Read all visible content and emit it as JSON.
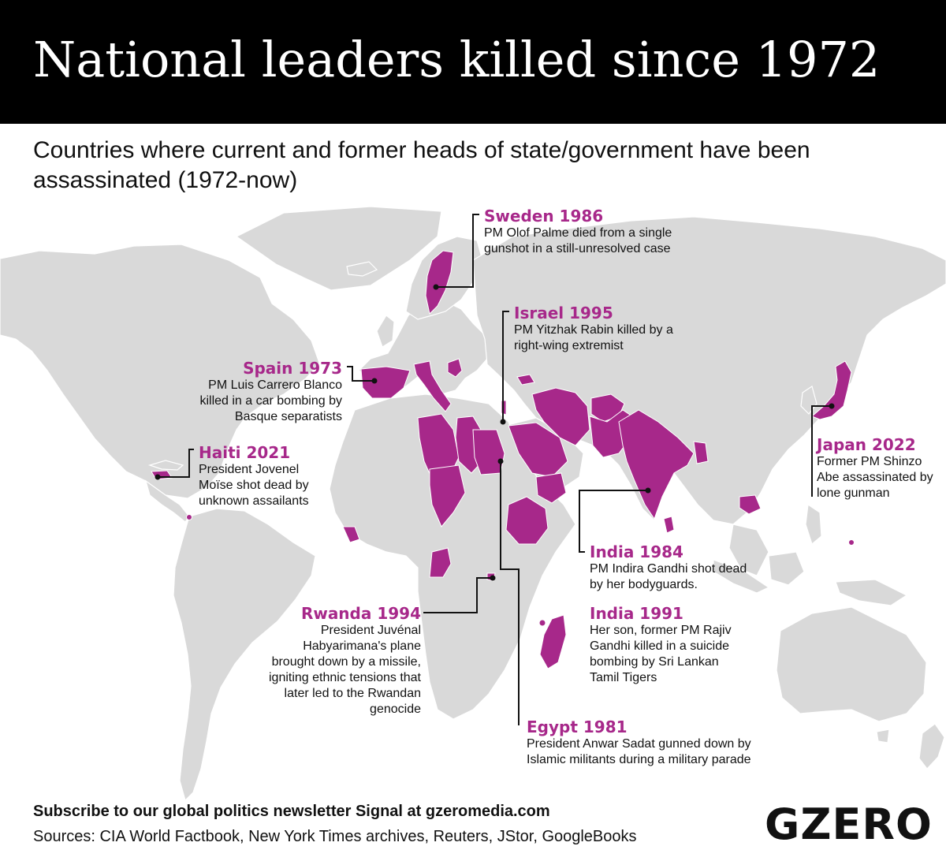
{
  "title": "National leaders killed since 1972",
  "subtitle": "Countries where current and former heads of state/government have been assassinated (1972-now)",
  "colors": {
    "highlight": "#a7288a",
    "land": "#d9d9d9",
    "background": "#ffffff",
    "header": "#000000"
  },
  "annotations": {
    "sweden": {
      "head": "Sweden 1986",
      "body": "PM Olof Palme died from a single gunshot in a still-unresolved case"
    },
    "israel": {
      "head": "Israel 1995",
      "body": "PM Yitzhak Rabin killed by a right-wing extremist"
    },
    "spain": {
      "head": "Spain 1973",
      "body": "PM Luis Carrero Blanco killed in a car bombing by Basque separatists"
    },
    "haiti": {
      "head": "Haiti 2021",
      "body": "President Jovenel Moïse shot dead by unknown assailants"
    },
    "japan": {
      "head": "Japan 2022",
      "body": "Former PM Shinzo Abe assassinated by lone gunman"
    },
    "india1984": {
      "head": "India 1984",
      "body": "PM Indira Gandhi shot dead by her bodyguards."
    },
    "india1991": {
      "head": "India 1991",
      "body": "Her son, former PM Rajiv Gandhi killed in a suicide bombing by Sri Lankan Tamil Tigers"
    },
    "rwanda": {
      "head": "Rwanda 1994",
      "body": "President Juvénal Habyarimana's plane brought down by a missile, igniting ethnic tensions that later led to the Rwandan genocide"
    },
    "egypt": {
      "head": "Egypt 1981",
      "body": "President Anwar Sadat gunned down by Islamic militants during a military parade"
    }
  },
  "highlighted_regions": [
    "Sweden",
    "Spain",
    "Italy",
    "Serbia",
    "Haiti",
    "Grenada",
    "Liberia",
    "Algeria",
    "Libya",
    "Egypt",
    "Chad",
    "Central African Republic",
    "Congo",
    "Rwanda",
    "Israel",
    "Saudi Arabia",
    "Yemen",
    "Ethiopia",
    "Iran",
    "Afghanistan",
    "Pakistan",
    "India",
    "Bangladesh",
    "Sri Lanka",
    "Georgia",
    "Cambodia",
    "Japan",
    "Madagascar",
    "Comoros",
    "Palau"
  ],
  "footer": {
    "subscribe": "Subscribe to our global politics newsletter Signal at gzeromedia.com",
    "sources": "Sources: CIA World Factbook, New York Times archives, Reuters, JStor, GoogleBooks"
  },
  "logo": "GZERO"
}
